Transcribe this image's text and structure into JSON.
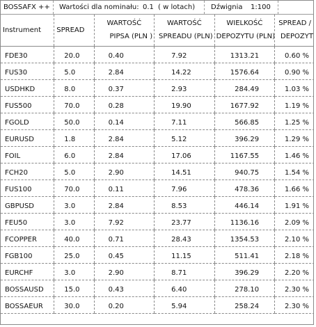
{
  "topbar": {
    "app_name": "BOSSAFX ++",
    "nominal_label": "Wartości dla nominału:",
    "nominal_value": "0.1",
    "nominal_unit": "( w lotach)",
    "leverage_label": "Dźwignia",
    "leverage_value": "1:100"
  },
  "headers": {
    "instrument": "Instrument",
    "spread": "SPREAD",
    "pip_value_l1": "WARTOŚĆ",
    "pip_value_l2": "PIPSA (PLN )",
    "spread_value_l1": "WARTOŚĆ",
    "spread_value_l2": "SPREADU (PLN)",
    "deposit_l1": "WIELKOŚĆ",
    "deposit_l2": "DEPOZYTU (PLN)",
    "ratio_l1": "SPREAD /",
    "ratio_l2": "DEPOZYT"
  },
  "rows": [
    {
      "instrument": "FDE30",
      "spread": "20.0",
      "pip": "0.40",
      "spread_value": "7.92",
      "deposit": "1313.21",
      "ratio": "0.60 %"
    },
    {
      "instrument": "FUS30",
      "spread": "5.0",
      "pip": "2.84",
      "spread_value": "14.22",
      "deposit": "1576.64",
      "ratio": "0.90 %"
    },
    {
      "instrument": "USDHKD",
      "spread": "8.0",
      "pip": "0.37",
      "spread_value": "2.93",
      "deposit": "284.49",
      "ratio": "1.03 %"
    },
    {
      "instrument": "FUS500",
      "spread": "70.0",
      "pip": "0.28",
      "spread_value": "19.90",
      "deposit": "1677.92",
      "ratio": "1.19 %"
    },
    {
      "instrument": "FGOLD",
      "spread": "50.0",
      "pip": "0.14",
      "spread_value": "7.11",
      "deposit": "566.85",
      "ratio": "1.25 %"
    },
    {
      "instrument": "EURUSD",
      "spread": "1.8",
      "pip": "2.84",
      "spread_value": "5.12",
      "deposit": "396.29",
      "ratio": "1.29 %"
    },
    {
      "instrument": "FOIL",
      "spread": "6.0",
      "pip": "2.84",
      "spread_value": "17.06",
      "deposit": "1167.55",
      "ratio": "1.46 %"
    },
    {
      "instrument": "FCH20",
      "spread": "5.0",
      "pip": "2.90",
      "spread_value": "14.51",
      "deposit": "940.75",
      "ratio": "1.54 %"
    },
    {
      "instrument": "FUS100",
      "spread": "70.0",
      "pip": "0.11",
      "spread_value": "7.96",
      "deposit": "478.36",
      "ratio": "1.66 %"
    },
    {
      "instrument": "GBPUSD",
      "spread": "3.0",
      "pip": "2.84",
      "spread_value": "8.53",
      "deposit": "446.14",
      "ratio": "1.91 %"
    },
    {
      "instrument": "FEU50",
      "spread": "3.0",
      "pip": "7.92",
      "spread_value": "23.77",
      "deposit": "1136.16",
      "ratio": "2.09 %"
    },
    {
      "instrument": "FCOPPER",
      "spread": "40.0",
      "pip": "0.71",
      "spread_value": "28.43",
      "deposit": "1354.53",
      "ratio": "2.10 %"
    },
    {
      "instrument": "FGB100",
      "spread": "25.0",
      "pip": "0.45",
      "spread_value": "11.15",
      "deposit": "511.41",
      "ratio": "2.18 %"
    },
    {
      "instrument": "EURCHF",
      "spread": "3.0",
      "pip": "2.90",
      "spread_value": "8.71",
      "deposit": "396.29",
      "ratio": "2.20 %"
    },
    {
      "instrument": "BOSSAUSD",
      "spread": "15.0",
      "pip": "0.43",
      "spread_value": "6.40",
      "deposit": "278.10",
      "ratio": "2.30 %"
    },
    {
      "instrument": "BOSSAEUR",
      "spread": "30.0",
      "pip": "0.20",
      "spread_value": "5.94",
      "deposit": "258.24",
      "ratio": "2.30 %"
    }
  ]
}
